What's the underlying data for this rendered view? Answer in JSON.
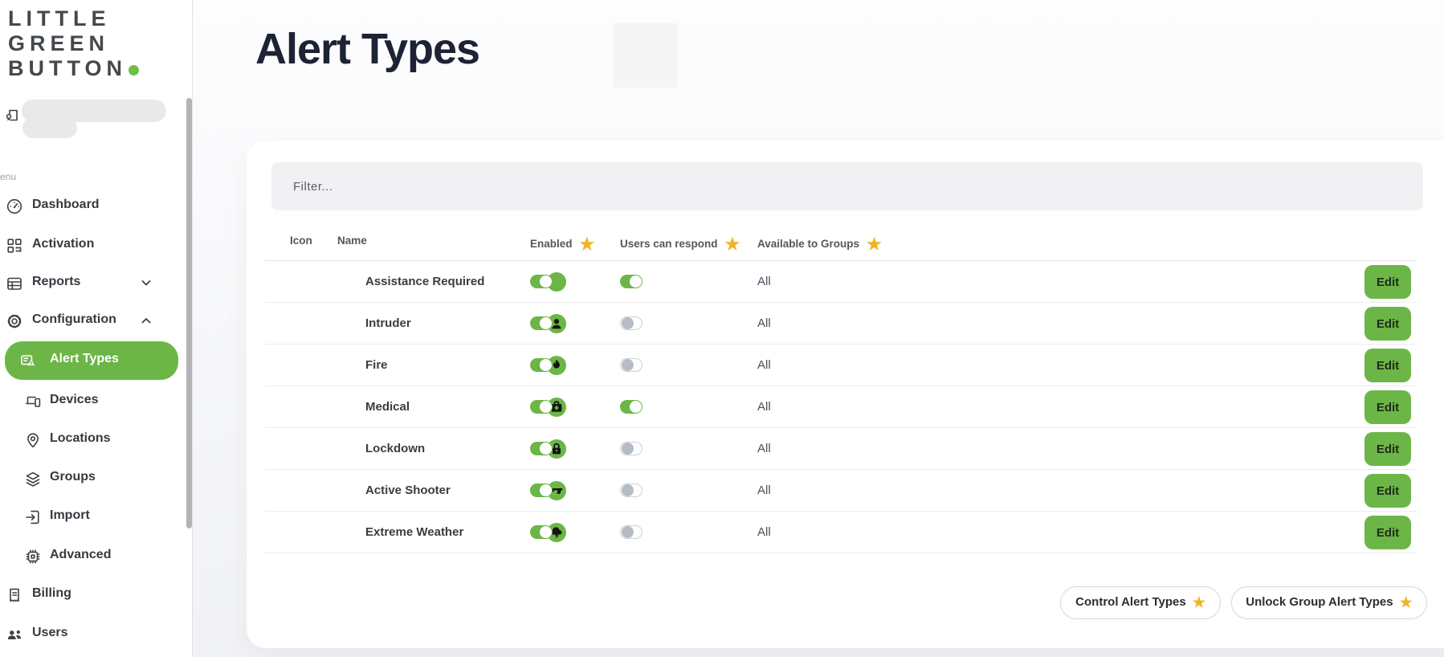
{
  "brand": {
    "line1": "LITTLE",
    "line2": "GREEN",
    "line3": "BUTTON"
  },
  "sidebar": {
    "menu_label": "enu",
    "items": [
      {
        "label": "Dashboard",
        "icon": "gauge-icon",
        "level": 0,
        "chevron": null,
        "active": false
      },
      {
        "label": "Activation",
        "icon": "qr-code-icon",
        "level": 0,
        "chevron": null,
        "active": false
      },
      {
        "label": "Reports",
        "icon": "table-icon",
        "level": 0,
        "chevron": "down",
        "active": false
      },
      {
        "label": "Configuration",
        "icon": "gear-icon",
        "level": 0,
        "chevron": "up",
        "active": false
      },
      {
        "label": "Alert Types",
        "icon": "alert-card-icon",
        "level": 1,
        "chevron": null,
        "active": true
      },
      {
        "label": "Devices",
        "icon": "devices-icon",
        "level": 1,
        "chevron": null,
        "active": false
      },
      {
        "label": "Locations",
        "icon": "location-pin-icon",
        "level": 1,
        "chevron": null,
        "active": false
      },
      {
        "label": "Groups",
        "icon": "layers-icon",
        "level": 1,
        "chevron": null,
        "active": false
      },
      {
        "label": "Import",
        "icon": "import-icon",
        "level": 1,
        "chevron": null,
        "active": false
      },
      {
        "label": "Advanced",
        "icon": "chip-icon",
        "level": 1,
        "chevron": null,
        "active": false
      },
      {
        "label": "Billing",
        "icon": "receipt-icon",
        "level": 0,
        "chevron": null,
        "active": false
      },
      {
        "label": "Users",
        "icon": "users-icon",
        "level": 0,
        "chevron": null,
        "active": false
      }
    ]
  },
  "page": {
    "title": "Alert Types"
  },
  "filter": {
    "placeholder": "Filter..."
  },
  "table": {
    "columns": [
      {
        "label": "Icon",
        "starred": false
      },
      {
        "label": "Name",
        "starred": false
      },
      {
        "label": "Enabled",
        "starred": true
      },
      {
        "label": "Users can respond",
        "starred": true
      },
      {
        "label": "Available to Groups",
        "starred": true
      }
    ],
    "edit_label": "Edit",
    "rows": [
      {
        "name": "Assistance Required",
        "icon": "green-circle-icon",
        "enabled": true,
        "users_can_respond": true,
        "available_to_groups": "All"
      },
      {
        "name": "Intruder",
        "icon": "intruder-person-icon",
        "enabled": true,
        "users_can_respond": false,
        "available_to_groups": "All"
      },
      {
        "name": "Fire",
        "icon": "flame-icon",
        "enabled": true,
        "users_can_respond": false,
        "available_to_groups": "All"
      },
      {
        "name": "Medical",
        "icon": "medical-bag-icon",
        "enabled": true,
        "users_can_respond": true,
        "available_to_groups": "All"
      },
      {
        "name": "Lockdown",
        "icon": "padlock-icon",
        "enabled": true,
        "users_can_respond": false,
        "available_to_groups": "All"
      },
      {
        "name": "Active Shooter",
        "icon": "handgun-icon",
        "enabled": true,
        "users_can_respond": false,
        "available_to_groups": "All"
      },
      {
        "name": "Extreme Weather",
        "icon": "storm-cloud-icon",
        "enabled": true,
        "users_can_respond": false,
        "available_to_groups": "All"
      }
    ]
  },
  "footer_buttons": [
    {
      "label": "Control Alert Types",
      "starred": true
    },
    {
      "label": "Unlock Group Alert Types",
      "starred": true
    }
  ],
  "colors": {
    "accent_green": "#6cb647",
    "star_gold": "#f0b429",
    "title_navy": "#1d2235"
  }
}
